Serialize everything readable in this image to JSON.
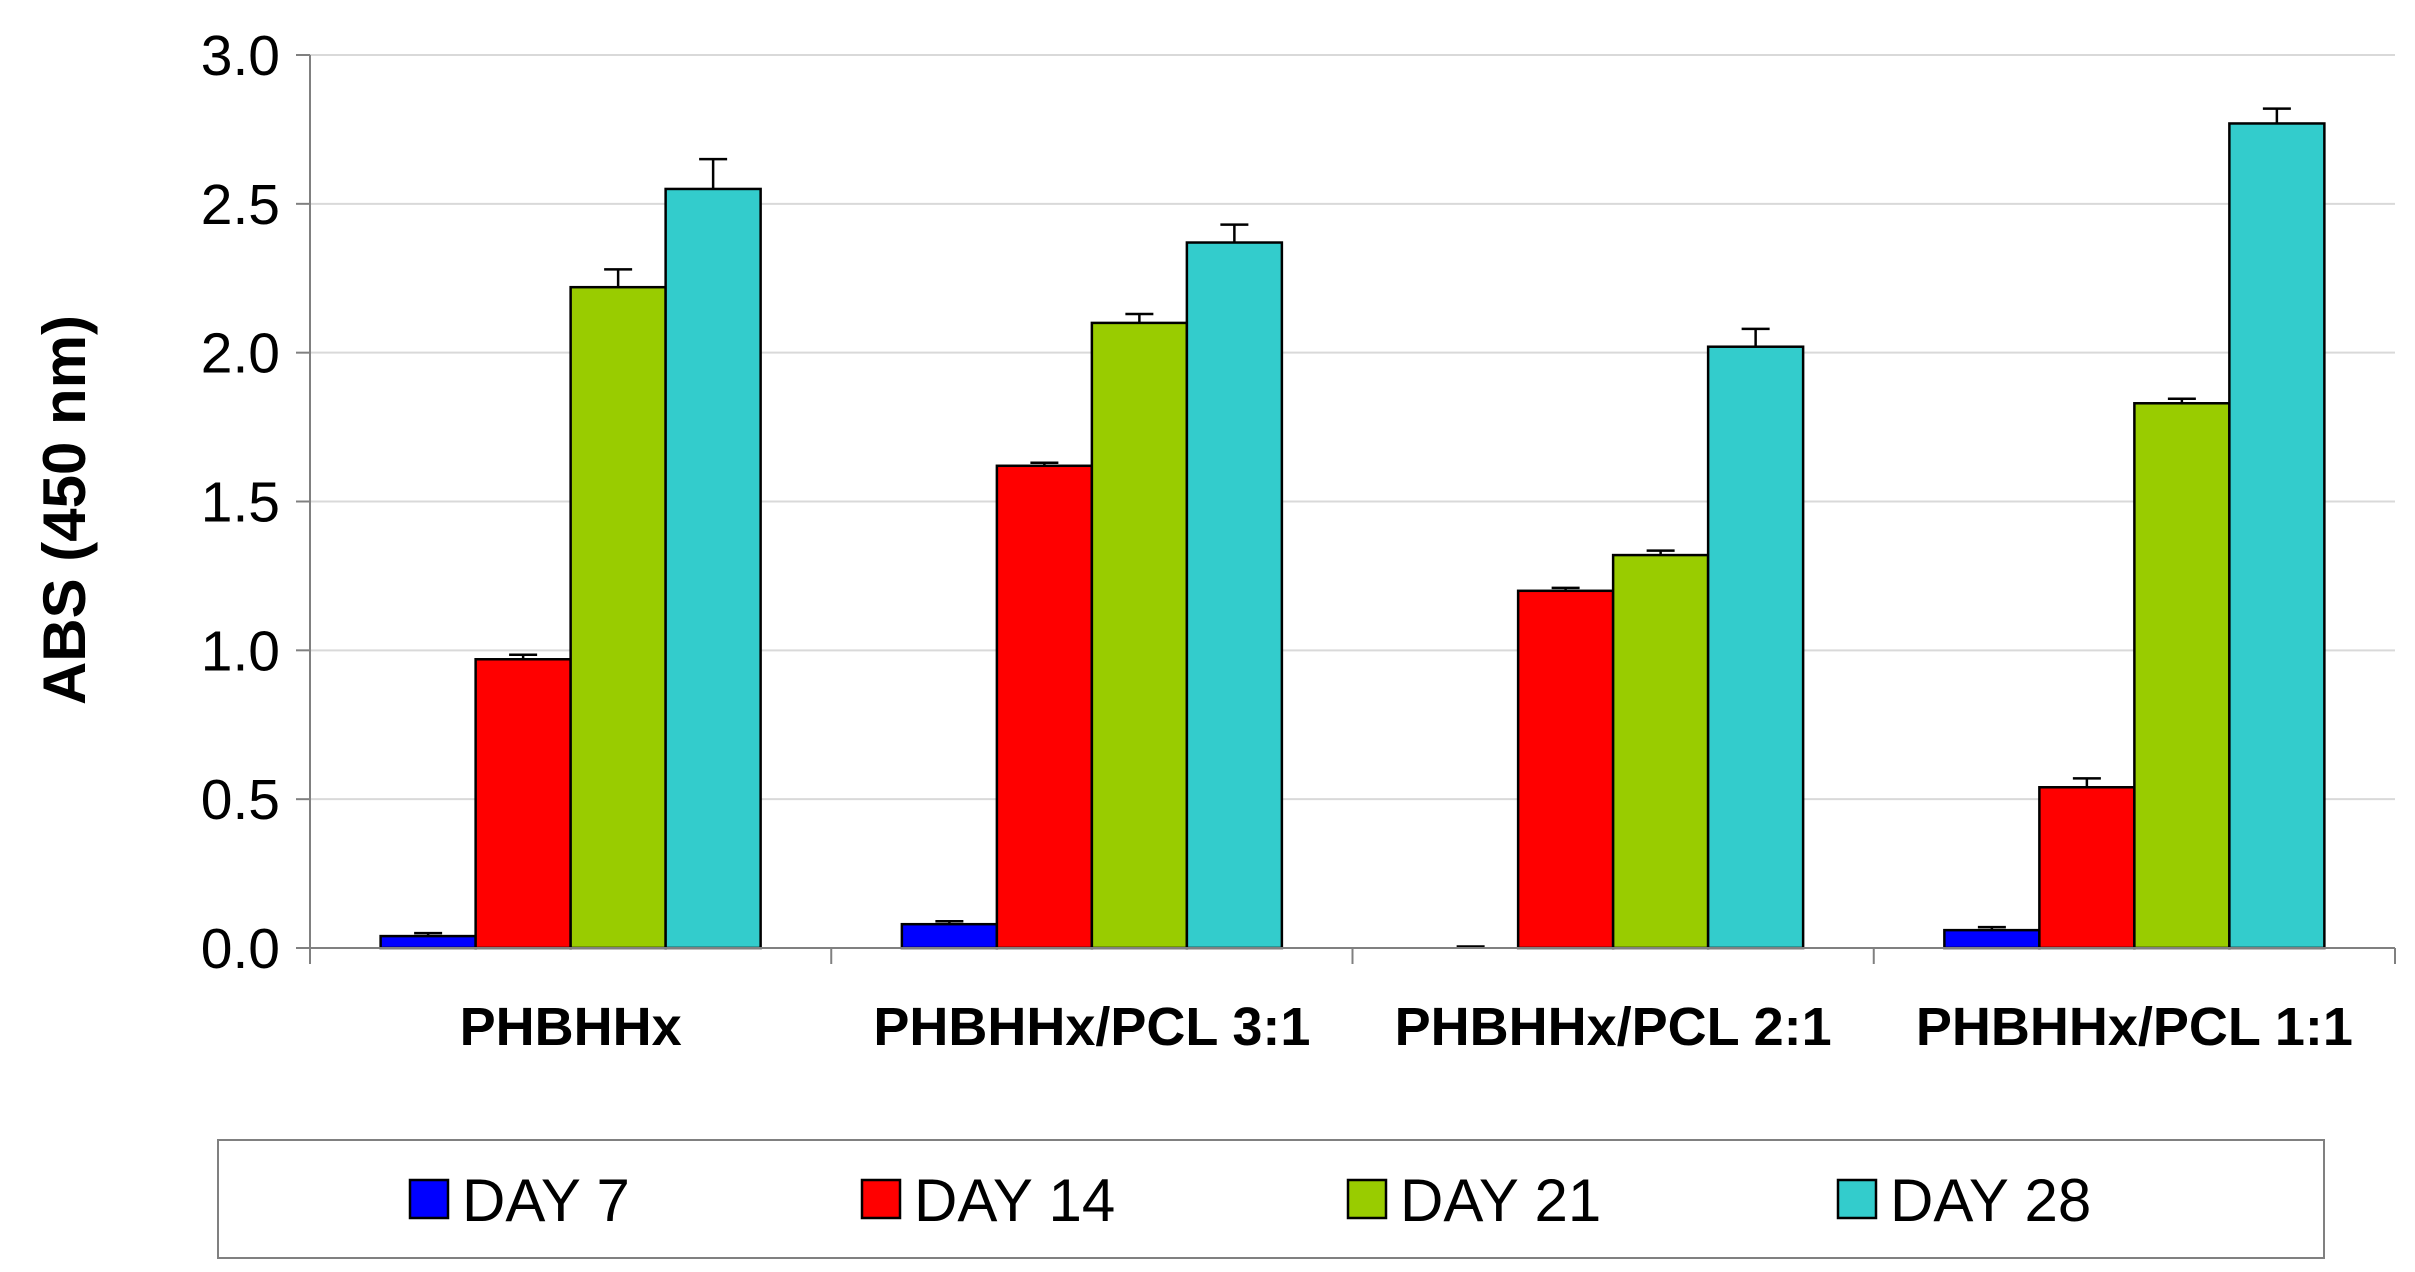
{
  "chart_data": {
    "type": "bar",
    "title": "",
    "xlabel": "",
    "ylabel": "ABS (450 nm)",
    "ylim": [
      0,
      3.0
    ],
    "yticks": [
      "0.0",
      "0.5",
      "1.0",
      "1.5",
      "2.0",
      "2.5",
      "3.0"
    ],
    "grid": true,
    "legend_position": "bottom",
    "categories": [
      "PHBHHx",
      "PHBHHx/PCL 3:1",
      "PHBHHx/PCL 2:1",
      "PHBHHx/PCL 1:1"
    ],
    "series": [
      {
        "name": "DAY 7",
        "color": "#0000ff",
        "values": [
          0.04,
          0.08,
          0.0,
          0.06
        ],
        "errors": [
          0.01,
          0.01,
          0.005,
          0.01
        ]
      },
      {
        "name": "DAY 14",
        "color": "#ff0000",
        "values": [
          0.97,
          1.62,
          1.2,
          0.54
        ],
        "errors": [
          0.015,
          0.01,
          0.01,
          0.03
        ]
      },
      {
        "name": "DAY 21",
        "color": "#99cc00",
        "values": [
          2.22,
          2.1,
          1.32,
          1.83
        ],
        "errors": [
          0.06,
          0.03,
          0.015,
          0.015
        ]
      },
      {
        "name": "DAY 28",
        "color": "#33cccc",
        "values": [
          2.55,
          2.37,
          2.02,
          2.77
        ],
        "errors": [
          0.1,
          0.06,
          0.06,
          0.05
        ]
      }
    ]
  }
}
